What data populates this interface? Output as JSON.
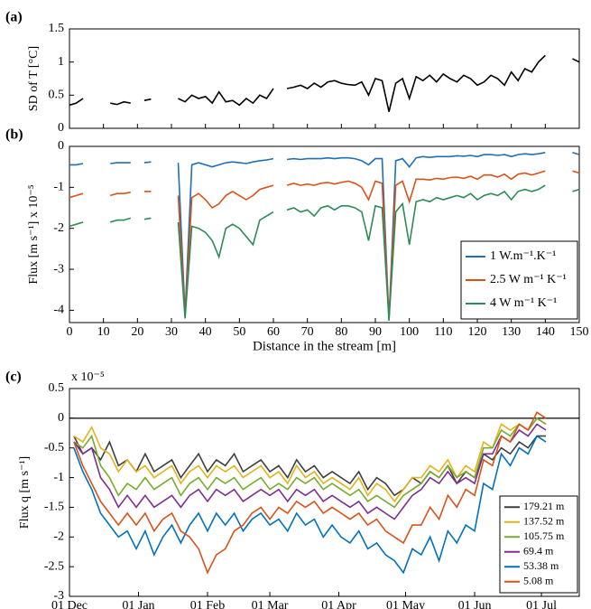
{
  "chart_data": [
    {
      "type": "line",
      "panel_label": "(a)",
      "ylabel": "SD of T [°C]",
      "x": [
        0,
        2,
        4,
        6,
        8,
        10,
        12,
        14,
        16,
        18,
        20,
        22,
        24,
        26,
        28,
        30,
        32,
        34,
        36,
        38,
        40,
        42,
        44,
        46,
        48,
        50,
        52,
        54,
        56,
        58,
        60,
        62,
        64,
        66,
        68,
        70,
        72,
        74,
        76,
        78,
        80,
        82,
        84,
        86,
        88,
        90,
        92,
        94,
        96,
        98,
        100,
        102,
        104,
        106,
        108,
        110,
        112,
        114,
        116,
        118,
        120,
        122,
        124,
        126,
        128,
        130,
        132,
        134,
        136,
        138,
        140,
        142,
        144,
        146,
        148,
        150
      ],
      "series": [
        {
          "color": "#000000",
          "values": [
            0.35,
            0.38,
            0.45,
            null,
            null,
            null,
            0.38,
            0.36,
            0.4,
            0.38,
            null,
            0.42,
            0.44,
            null,
            null,
            null,
            0.45,
            0.4,
            0.5,
            0.45,
            0.48,
            0.38,
            0.55,
            0.4,
            0.42,
            0.35,
            0.45,
            0.38,
            0.5,
            0.45,
            0.6,
            null,
            0.6,
            0.62,
            0.65,
            0.6,
            0.68,
            0.62,
            0.7,
            0.72,
            0.68,
            0.66,
            0.65,
            0.7,
            0.5,
            0.75,
            0.72,
            0.25,
            0.68,
            0.75,
            0.45,
            0.78,
            0.72,
            0.8,
            0.7,
            0.82,
            0.75,
            0.7,
            0.8,
            0.75,
            0.65,
            0.7,
            0.8,
            0.75,
            0.65,
            0.85,
            0.72,
            0.9,
            0.85,
            1.0,
            1.1,
            null,
            null,
            null,
            1.05,
            1.0
          ]
        }
      ],
      "xlim": [
        0,
        150
      ],
      "xticks": [
        0,
        10,
        20,
        30,
        40,
        50,
        60,
        70,
        80,
        90,
        100,
        110,
        120,
        130,
        140,
        150
      ],
      "ylim": [
        0,
        1.5
      ],
      "yticks": [
        0,
        0.5,
        1,
        1.5
      ]
    },
    {
      "type": "line",
      "panel_label": "(b)",
      "ylabel": "Flux [m s⁻¹]  x 10⁻⁵",
      "xlabel": "Distance in the stream [m]",
      "x": [
        0,
        2,
        4,
        6,
        8,
        10,
        12,
        14,
        16,
        18,
        20,
        22,
        24,
        26,
        28,
        30,
        32,
        34,
        36,
        38,
        40,
        42,
        44,
        46,
        48,
        50,
        52,
        54,
        56,
        58,
        60,
        62,
        64,
        66,
        68,
        70,
        72,
        74,
        76,
        78,
        80,
        82,
        84,
        86,
        88,
        90,
        92,
        94,
        96,
        98,
        100,
        102,
        104,
        106,
        108,
        110,
        112,
        114,
        116,
        118,
        120,
        122,
        124,
        126,
        128,
        130,
        132,
        134,
        136,
        138,
        140,
        142,
        144,
        146,
        148,
        150
      ],
      "legend": "lower right",
      "series": [
        {
          "name": "1 W.m⁻¹.K⁻¹",
          "color": "#1f6fb4",
          "values": [
            -0.45,
            -0.45,
            -0.42,
            null,
            null,
            null,
            -0.42,
            -0.4,
            -0.4,
            -0.4,
            null,
            -0.4,
            -0.38,
            null,
            null,
            null,
            -0.4,
            -4.1,
            -0.45,
            -0.4,
            -0.45,
            -0.5,
            -0.45,
            -0.4,
            -0.38,
            -0.4,
            -0.42,
            -0.38,
            -0.35,
            -0.33,
            -0.3,
            null,
            -0.32,
            -0.3,
            -0.32,
            -0.3,
            -0.3,
            -0.3,
            -0.28,
            -0.3,
            -0.28,
            -0.28,
            -0.3,
            -0.35,
            -0.45,
            -0.3,
            -0.3,
            -4.25,
            -0.35,
            -0.3,
            -0.5,
            -0.28,
            -0.25,
            -0.27,
            -0.25,
            -0.25,
            -0.25,
            -0.23,
            -0.24,
            -0.22,
            -0.25,
            -0.2,
            -0.2,
            -0.22,
            -0.2,
            -0.25,
            -0.2,
            -0.18,
            -0.2,
            -0.18,
            -0.15,
            null,
            null,
            null,
            -0.15,
            -0.2
          ]
        },
        {
          "name": "2.5 W m⁻¹ K⁻¹",
          "color": "#d95319",
          "values": [
            -1.25,
            -1.2,
            -1.15,
            null,
            null,
            null,
            -1.2,
            -1.15,
            -1.15,
            -1.12,
            null,
            -1.1,
            -1.1,
            null,
            null,
            null,
            -1.2,
            -4.15,
            -1.25,
            -1.15,
            -1.3,
            -1.5,
            -1.4,
            -1.2,
            -1.1,
            -1.2,
            -1.3,
            -1.2,
            -1.05,
            -1.0,
            -0.95,
            null,
            -0.95,
            -0.9,
            -0.95,
            -0.92,
            -0.95,
            -0.9,
            -0.88,
            -0.92,
            -0.88,
            -0.85,
            -0.9,
            -1.0,
            -1.3,
            -0.85,
            -0.9,
            -4.2,
            -0.95,
            -0.85,
            -1.35,
            -0.8,
            -0.8,
            -0.82,
            -0.78,
            -0.8,
            -0.76,
            -0.75,
            -0.78,
            -0.73,
            -0.8,
            -0.7,
            -0.7,
            -0.75,
            -0.68,
            -0.8,
            -0.68,
            -0.65,
            -0.7,
            -0.65,
            -0.6,
            null,
            null,
            null,
            -0.6,
            -0.65
          ]
        },
        {
          "name": "4 W m⁻¹ K⁻¹",
          "color": "#2e8b57",
          "values": [
            -1.95,
            -1.9,
            -1.85,
            null,
            null,
            null,
            -1.85,
            -1.8,
            -1.8,
            -1.75,
            null,
            -1.78,
            -1.75,
            null,
            null,
            null,
            -1.85,
            -4.2,
            -1.95,
            -2.0,
            -2.1,
            -2.3,
            -2.7,
            -2.0,
            -1.9,
            -2.0,
            -2.2,
            -2.4,
            -1.8,
            -1.7,
            -1.6,
            null,
            -1.55,
            -1.5,
            -1.6,
            -1.55,
            -1.7,
            -1.5,
            -1.45,
            -1.55,
            -1.45,
            -1.45,
            -1.5,
            -1.6,
            -2.3,
            -1.45,
            -1.5,
            -4.25,
            -1.6,
            -1.4,
            -2.4,
            -1.35,
            -1.3,
            -1.35,
            -1.25,
            -1.3,
            -1.25,
            -1.2,
            -1.25,
            -1.15,
            -1.3,
            -1.2,
            -1.15,
            -1.2,
            -1.1,
            -1.3,
            -1.1,
            -1.05,
            -1.1,
            -1.05,
            -0.95,
            null,
            null,
            null,
            -1.1,
            -1.05
          ]
        }
      ],
      "xlim": [
        0,
        150
      ],
      "xticks": [
        0,
        10,
        20,
        30,
        40,
        50,
        60,
        70,
        80,
        90,
        100,
        110,
        120,
        130,
        140,
        150
      ],
      "ylim": [
        -4.3,
        0
      ],
      "yticks": [
        0,
        -1,
        -2,
        -3,
        -4
      ]
    },
    {
      "type": "line",
      "panel_label": "(c)",
      "ylabel": "Flux q [m s⁻¹]",
      "y_exponent": "x 10⁻⁵",
      "zero_line": true,
      "legend": "lower right",
      "x": [
        2,
        6,
        10,
        14,
        18,
        22,
        26,
        30,
        34,
        38,
        42,
        46,
        50,
        54,
        58,
        62,
        66,
        70,
        74,
        78,
        82,
        86,
        90,
        94,
        98,
        102,
        106,
        110,
        114,
        118,
        122,
        126,
        130,
        134,
        138,
        142,
        146,
        150,
        154,
        158,
        162,
        166,
        170,
        174,
        178,
        182,
        186,
        190,
        194,
        198,
        202,
        206,
        210,
        214
      ],
      "series": [
        {
          "name": "179.21 m",
          "color": "#404040",
          "values": [
            -0.3,
            -0.6,
            -0.5,
            -0.7,
            -0.4,
            -0.8,
            -0.7,
            -0.9,
            -0.6,
            -0.9,
            -0.8,
            -0.7,
            -1.0,
            -0.8,
            -0.6,
            -0.9,
            -0.7,
            -0.8,
            -0.6,
            -0.9,
            -0.8,
            -0.7,
            -0.9,
            -0.8,
            -1.0,
            -0.7,
            -0.9,
            -0.8,
            -1.0,
            -0.9,
            -1.0,
            -1.1,
            -0.9,
            -1.2,
            -1.0,
            -1.1,
            -1.3,
            -1.2,
            -1.0,
            -1.1,
            -0.9,
            -1.0,
            -0.8,
            -1.1,
            -0.9,
            -1.0,
            -0.6,
            -0.7,
            -0.5,
            -0.6,
            -0.4,
            -0.5,
            -0.3,
            -0.3
          ]
        },
        {
          "name": "137.52 m",
          "color": "#e3b31c",
          "values": [
            -0.3,
            -0.4,
            -0.15,
            -0.5,
            -0.6,
            -0.9,
            -0.7,
            -0.9,
            -0.8,
            -1.0,
            -0.9,
            -0.8,
            -1.1,
            -0.9,
            -0.8,
            -1.0,
            -0.8,
            -0.9,
            -0.8,
            -1.0,
            -0.9,
            -0.8,
            -1.0,
            -0.9,
            -1.1,
            -0.8,
            -1.0,
            -0.9,
            -1.1,
            -1.0,
            -1.1,
            -1.2,
            -1.0,
            -1.3,
            -1.1,
            -1.2,
            -1.4,
            -1.2,
            -1.0,
            -1.0,
            -0.8,
            -0.9,
            -0.7,
            -1.0,
            -0.8,
            -0.9,
            -0.4,
            -0.5,
            -0.1,
            -0.2,
            -0.1,
            -0.2,
            0,
            -0.1
          ]
        },
        {
          "name": "105.75 m",
          "color": "#77ac30",
          "values": [
            -0.4,
            -0.5,
            -0.3,
            -0.8,
            -1.0,
            -1.3,
            -1.1,
            -1.2,
            -1.0,
            -1.2,
            -1.1,
            -1.0,
            -1.3,
            -1.1,
            -1.0,
            -1.2,
            -1.0,
            -1.1,
            -1.0,
            -1.2,
            -1.1,
            -1.0,
            -1.2,
            -1.1,
            -1.2,
            -1.0,
            -1.1,
            -1.0,
            -1.2,
            -1.1,
            -1.2,
            -1.3,
            -1.2,
            -1.4,
            -1.3,
            -1.4,
            -1.5,
            -1.3,
            -1.2,
            -1.1,
            -0.9,
            -1.0,
            -0.8,
            -1.0,
            -0.9,
            -1.0,
            -0.5,
            -0.5,
            -0.2,
            -0.3,
            -0.1,
            -0.2,
            0,
            -0.1
          ]
        },
        {
          "name": "69.4 m",
          "color": "#7e2f8e",
          "values": [
            -0.4,
            -0.6,
            -0.5,
            -1.0,
            -1.2,
            -1.5,
            -1.3,
            -1.5,
            -1.3,
            -1.5,
            -1.4,
            -1.3,
            -1.5,
            -1.3,
            -1.2,
            -1.4,
            -1.2,
            -1.3,
            -1.2,
            -1.4,
            -1.3,
            -1.2,
            -1.3,
            -1.2,
            -1.4,
            -1.2,
            -1.3,
            -1.2,
            -1.4,
            -1.3,
            -1.4,
            -1.5,
            -1.4,
            -1.6,
            -1.5,
            -1.6,
            -1.7,
            -1.5,
            -1.3,
            -1.2,
            -1.0,
            -1.1,
            -0.9,
            -1.1,
            -1.0,
            -1.1,
            -0.6,
            -0.6,
            -0.3,
            -0.4,
            -0.2,
            -0.3,
            -0.1,
            -0.2
          ]
        },
        {
          "name": "53.38 m",
          "color": "#0072bd",
          "values": [
            -0.5,
            -0.9,
            -1.2,
            -1.6,
            -1.8,
            -2.0,
            -1.9,
            -2.2,
            -1.9,
            -2.3,
            -2.0,
            -1.8,
            -2.1,
            -1.8,
            -1.6,
            -1.9,
            -1.6,
            -1.8,
            -1.6,
            -1.9,
            -1.7,
            -1.6,
            -1.8,
            -1.7,
            -1.9,
            -1.6,
            -1.8,
            -1.7,
            -2.0,
            -1.8,
            -2.0,
            -2.1,
            -1.9,
            -2.2,
            -2.1,
            -2.3,
            -2.4,
            -2.6,
            -2.2,
            -2.3,
            -2.0,
            -2.4,
            -1.9,
            -2.1,
            -1.8,
            -1.9,
            -1.1,
            -1.2,
            -0.6,
            -0.8,
            -0.5,
            -0.6,
            -0.3,
            -0.4
          ]
        },
        {
          "name": "5.08 m",
          "color": "#d95319",
          "values": [
            -0.4,
            -0.8,
            -1.1,
            -1.4,
            -1.6,
            -1.8,
            -1.6,
            -1.8,
            -1.6,
            -1.9,
            -1.7,
            -1.6,
            -1.9,
            -2.0,
            -2.2,
            -2.6,
            -2.3,
            -2.2,
            -1.9,
            -1.8,
            -1.6,
            -1.5,
            -1.7,
            -1.5,
            -1.6,
            -1.4,
            -1.5,
            -1.4,
            -1.6,
            -1.5,
            -1.6,
            -1.7,
            -1.6,
            -1.8,
            -1.7,
            -1.9,
            -2.0,
            -2.1,
            -1.8,
            -1.8,
            -1.5,
            -1.7,
            -1.3,
            -1.5,
            -1.2,
            -1.3,
            -0.7,
            -0.8,
            -0.3,
            -0.4,
            -0.1,
            -0.2,
            0.1,
            0.0
          ]
        }
      ],
      "xlim": [
        0,
        229
      ],
      "xticks": [
        {
          "value": 0,
          "label": "01 Dec"
        },
        {
          "value": 31,
          "label": "01 Jan"
        },
        {
          "value": 62,
          "label": "01 Feb"
        },
        {
          "value": 90,
          "label": "01 Mar"
        },
        {
          "value": 121,
          "label": "01 Apr"
        },
        {
          "value": 151,
          "label": "01 May"
        },
        {
          "value": 182,
          "label": "01 Jun"
        },
        {
          "value": 212,
          "label": "01 Jul"
        }
      ],
      "ylim": [
        -3,
        0.5
      ],
      "yticks": [
        0.5,
        0,
        -0.5,
        -1,
        -1.5,
        -2,
        -2.5,
        -3
      ]
    }
  ]
}
